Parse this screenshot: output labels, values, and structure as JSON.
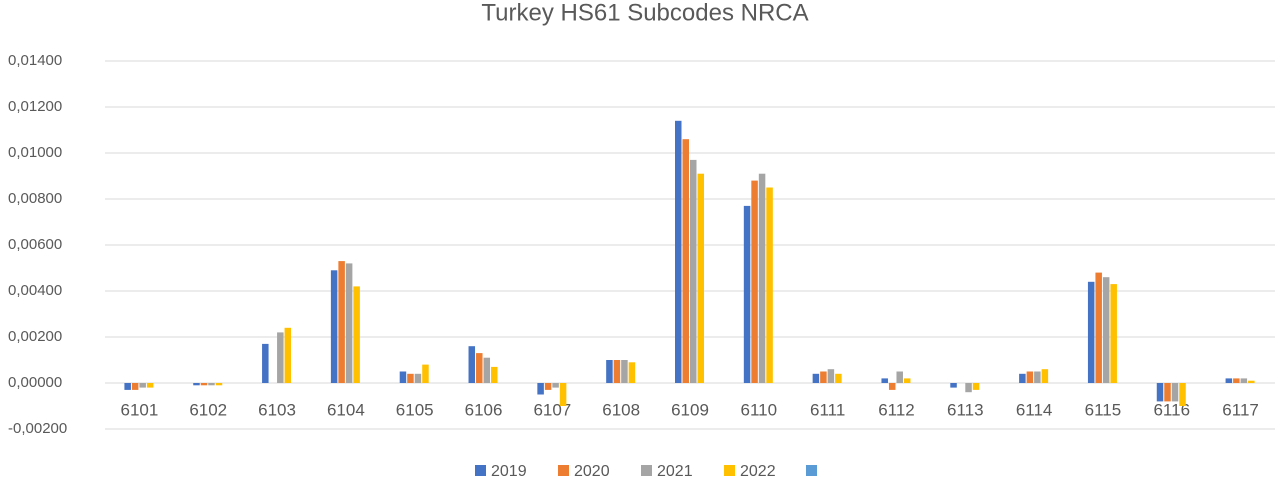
{
  "chart_data": {
    "type": "bar",
    "title": "Turkey HS61 Subcodes NRCA",
    "categories": [
      "6101",
      "6102",
      "6103",
      "6104",
      "6105",
      "6106",
      "6107",
      "6108",
      "6109",
      "6110",
      "6111",
      "6112",
      "6113",
      "6114",
      "6115",
      "6116",
      "6117"
    ],
    "series": [
      {
        "name": "2019",
        "color": "#4472c4",
        "values": [
          -0.0003,
          -0.0001,
          0.0017,
          0.0049,
          0.0005,
          0.0016,
          -0.0005,
          0.001,
          0.0114,
          0.0077,
          0.0004,
          0.0002,
          -0.0002,
          0.0004,
          0.0044,
          -0.0008,
          0.0002
        ]
      },
      {
        "name": "2020",
        "color": "#ed7d31",
        "values": [
          -0.0003,
          -0.0001,
          0,
          0.0053,
          0.0004,
          0.0013,
          -0.0003,
          0.001,
          0.0106,
          0.0088,
          0.0005,
          -0.0003,
          0,
          0.0005,
          0.0048,
          -0.0008,
          0.0002
        ]
      },
      {
        "name": "2021",
        "color": "#a5a5a5",
        "values": [
          -0.0002,
          -0.0001,
          0.0022,
          0.0052,
          0.0004,
          0.0011,
          -0.0002,
          0.001,
          0.0097,
          0.0091,
          0.0006,
          0.0005,
          -0.0004,
          0.0005,
          0.0046,
          -0.0008,
          0.0002
        ]
      },
      {
        "name": "2022",
        "color": "#ffc000",
        "values": [
          -0.0002,
          -0.0001,
          0.0024,
          0.0042,
          0.0008,
          0.0007,
          -0.001,
          0.0009,
          0.0091,
          0.0085,
          0.0004,
          0.0002,
          -0.0003,
          0.0006,
          0.0043,
          -0.001,
          0.0001
        ]
      }
    ],
    "ylim": [
      -0.002,
      0.014
    ],
    "yticks": [
      {
        "value": -0.002,
        "label": "-0,00200"
      },
      {
        "value": 0,
        "label": "0,00000"
      },
      {
        "value": 0.002,
        "label": "0,00200"
      },
      {
        "value": 0.004,
        "label": "0,00400"
      },
      {
        "value": 0.006,
        "label": "0,00600"
      },
      {
        "value": 0.008,
        "label": "0,00800"
      },
      {
        "value": 0.01,
        "label": "0,01000"
      },
      {
        "value": 0.012,
        "label": "0,01200"
      },
      {
        "value": 0.014,
        "label": "0,01400"
      }
    ],
    "grid": true
  }
}
